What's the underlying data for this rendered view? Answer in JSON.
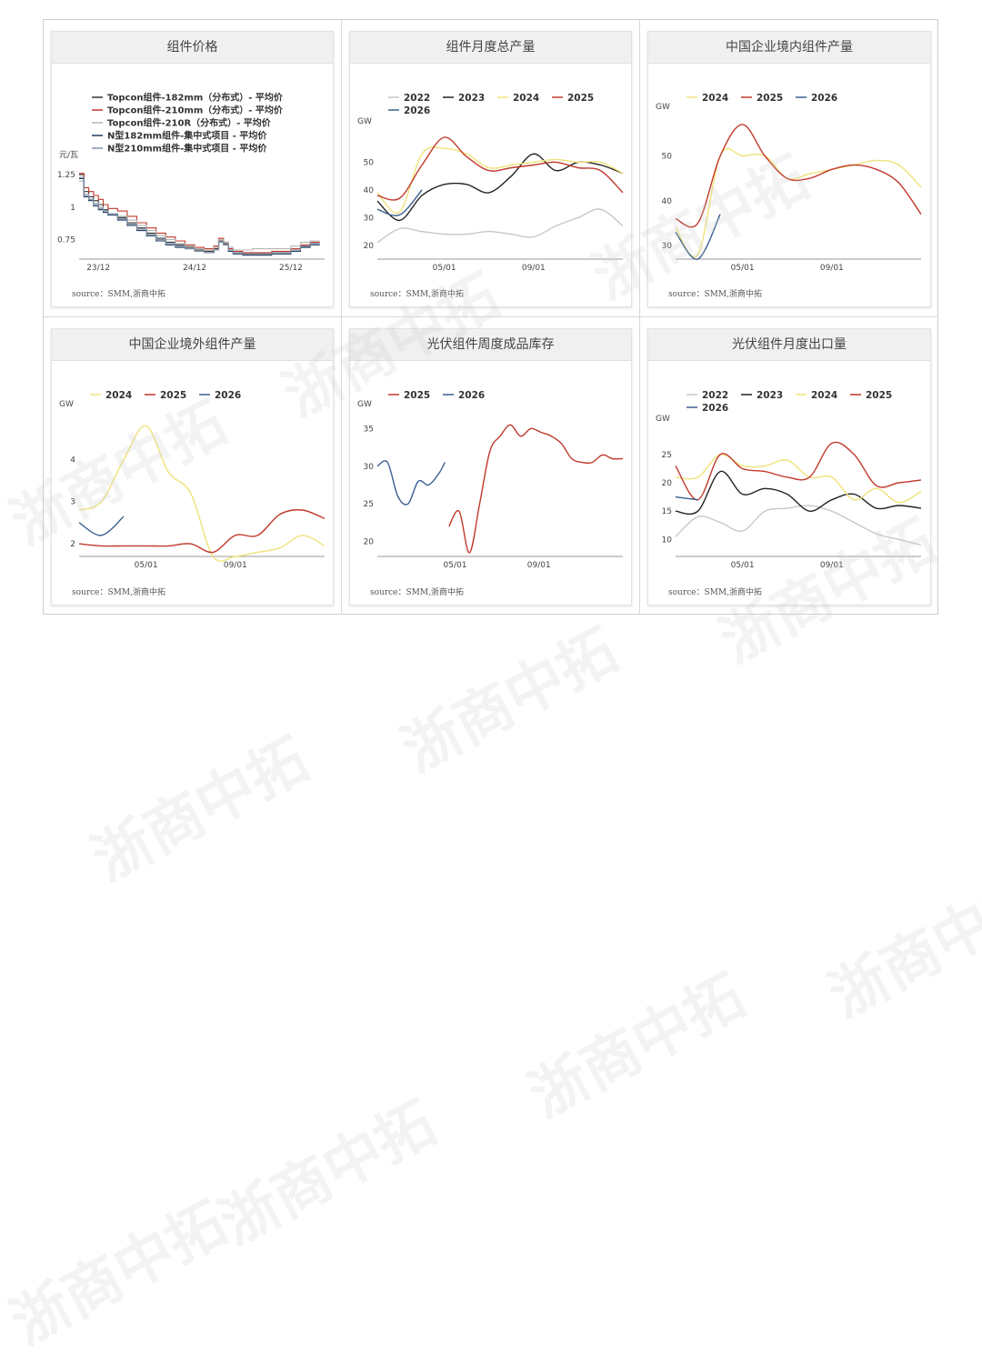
{
  "watermark": "浙商中拓",
  "panels": [
    {
      "title": "组件价格",
      "source": "source：SMM,浙商中拓",
      "chart_data": {
        "type": "line",
        "ylabel": "元/瓦",
        "ylim": [
          0.6,
          1.3
        ],
        "yticks": [
          0.75,
          1,
          1.25
        ],
        "ytick_labels": [
          "0.75",
          "1",
          "1.25"
        ],
        "xlim": [
          0,
          25.5
        ],
        "xticks": [
          2,
          12,
          22
        ],
        "xtick_labels": [
          "23/12",
          "24/12",
          "25/12"
        ],
        "legend_position": "top-left",
        "step": true,
        "series": [
          {
            "name": "Topcon组件-182mm（分布式）- 平均价",
            "color": "#333333",
            "x": [
              0,
              0.5,
              1,
              1.5,
              2,
              2.5,
              3,
              4,
              5,
              6,
              7,
              8,
              9,
              10,
              11,
              12,
              13,
              14,
              14.5,
              15,
              15.5,
              16,
              17,
              18,
              19,
              20,
              21,
              22,
              23,
              24,
              25
            ],
            "y": [
              1.25,
              1.12,
              1.08,
              1.05,
              1.02,
              0.98,
              0.95,
              0.92,
              0.88,
              0.84,
              0.8,
              0.76,
              0.73,
              0.71,
              0.69,
              0.67,
              0.66,
              0.68,
              0.74,
              0.72,
              0.67,
              0.65,
              0.64,
              0.64,
              0.64,
              0.65,
              0.65,
              0.67,
              0.7,
              0.72,
              0.72
            ]
          },
          {
            "name": "Topcon组件-210mm（分布式）- 平均价",
            "color": "#c0392b",
            "x": [
              0,
              0.5,
              1,
              1.5,
              2,
              2.5,
              3,
              4,
              5,
              6,
              7,
              8,
              9,
              10,
              11,
              12,
              13,
              14,
              14.5,
              15,
              15.5,
              16,
              17,
              18,
              19,
              20,
              21,
              22,
              23,
              24,
              25
            ],
            "y": [
              1.26,
              1.15,
              1.12,
              1.09,
              1.06,
              1.02,
              0.99,
              0.97,
              0.93,
              0.88,
              0.84,
              0.8,
              0.77,
              0.74,
              0.71,
              0.69,
              0.68,
              0.7,
              0.76,
              0.73,
              0.68,
              0.66,
              0.65,
              0.65,
              0.65,
              0.66,
              0.66,
              0.68,
              0.71,
              0.73,
              0.73
            ]
          },
          {
            "name": "Topcon组件-210R（分布式）- 平均价",
            "color": "#b5b5b5",
            "x": [
              0,
              0.5,
              1,
              1.5,
              2,
              2.5,
              3,
              4,
              5,
              6,
              7,
              8,
              9,
              10,
              11,
              12,
              13,
              14,
              14.5,
              15,
              15.5,
              16,
              17,
              18,
              19,
              20,
              21,
              22,
              23,
              24,
              25
            ],
            "y": [
              1.2,
              1.1,
              1.06,
              1.03,
              1.0,
              0.97,
              0.95,
              0.93,
              0.9,
              0.86,
              0.82,
              0.78,
              0.75,
              0.72,
              0.7,
              0.68,
              0.67,
              0.69,
              0.75,
              0.73,
              0.69,
              0.67,
              0.67,
              0.68,
              0.68,
              0.68,
              0.68,
              0.7,
              0.73,
              0.74,
              0.74
            ]
          },
          {
            "name": "N型182mm组件-集中式项目 - 平均价",
            "color": "#1f3a5f",
            "x": [
              0,
              0.5,
              1,
              1.5,
              2,
              2.5,
              3,
              4,
              5,
              6,
              7,
              8,
              9,
              10,
              11,
              12,
              13,
              14,
              14.5,
              15,
              15.5,
              16,
              17,
              18,
              19,
              20,
              21,
              22,
              23,
              24,
              25
            ],
            "y": [
              1.22,
              1.08,
              1.05,
              1.01,
              0.98,
              0.96,
              0.94,
              0.9,
              0.86,
              0.82,
              0.78,
              0.74,
              0.71,
              0.69,
              0.68,
              0.66,
              0.65,
              0.67,
              0.73,
              0.71,
              0.66,
              0.64,
              0.63,
              0.63,
              0.63,
              0.64,
              0.64,
              0.66,
              0.69,
              0.71,
              0.71
            ]
          },
          {
            "name": "N型210mm组件-集中式项目 - 平均价",
            "color": "#7f8fa6",
            "x": [
              0,
              0.5,
              1,
              1.5,
              2,
              2.5,
              3,
              4,
              5,
              6,
              7,
              8,
              9,
              10,
              11,
              12,
              13,
              14,
              14.5,
              15,
              15.5,
              16,
              17,
              18,
              19,
              20,
              21,
              22,
              23,
              24,
              25
            ],
            "y": [
              1.23,
              1.09,
              1.06,
              1.02,
              0.99,
              0.97,
              0.95,
              0.91,
              0.87,
              0.83,
              0.79,
              0.75,
              0.72,
              0.7,
              0.68,
              0.66,
              0.65,
              0.67,
              0.73,
              0.71,
              0.67,
              0.65,
              0.64,
              0.64,
              0.64,
              0.65,
              0.65,
              0.67,
              0.7,
              0.72,
              0.72
            ]
          }
        ]
      }
    },
    {
      "title": "组件月度总产量",
      "source": "source：SMM,浙商中拓",
      "chart_data": {
        "type": "line",
        "ylabel": "GW",
        "ylim": [
          15,
          60
        ],
        "yticks": [
          20,
          30,
          40,
          50
        ],
        "ytick_labels": [
          "20",
          "30",
          "40",
          "50"
        ],
        "xlim": [
          1,
          12
        ],
        "xticks": [
          4,
          8
        ],
        "xtick_labels": [
          "05/01",
          "09/01"
        ],
        "legend_position": "top",
        "series": [
          {
            "name": "2022",
            "color": "#c8c8c8",
            "x": [
              1,
              2,
              3,
              4,
              5,
              6,
              7,
              8,
              9,
              10,
              11,
              12
            ],
            "y": [
              21,
              26,
              25,
              24,
              24,
              25,
              24,
              23,
              27,
              30,
              33,
              27
            ]
          },
          {
            "name": "2023",
            "color": "#222222",
            "x": [
              1,
              2,
              3,
              4,
              5,
              6,
              7,
              8,
              9,
              10,
              11,
              12
            ],
            "y": [
              36,
              29,
              38,
              42,
              42,
              39,
              45,
              53,
              47,
              50,
              49,
              46
            ]
          },
          {
            "name": "2024",
            "color": "#f0e27a",
            "x": [
              1,
              2,
              3,
              4,
              5,
              6,
              7,
              8,
              9,
              10,
              11,
              12
            ],
            "y": [
              39,
              32,
              53,
              55,
              53,
              48,
              49,
              50,
              51,
              50,
              50,
              46
            ]
          },
          {
            "name": "2025",
            "color": "#c0392b",
            "x": [
              1,
              2,
              3,
              4,
              5,
              6,
              7,
              8,
              9,
              10,
              11,
              12
            ],
            "y": [
              38,
              37,
              49,
              59,
              52,
              47,
              48,
              49,
              50,
              48,
              47,
              39
            ]
          },
          {
            "name": "2026",
            "color": "#3a5f8f",
            "x": [
              1,
              2,
              3
            ],
            "y": [
              33,
              31,
              40
            ]
          }
        ]
      }
    },
    {
      "title": "中国企业境内组件产量",
      "source": "source：SMM,浙商中拓",
      "chart_data": {
        "type": "line",
        "ylabel": "GW",
        "ylim": [
          27,
          58
        ],
        "yticks": [
          30,
          40,
          50
        ],
        "ytick_labels": [
          "30",
          "40",
          "50"
        ],
        "xlim": [
          1,
          12
        ],
        "xticks": [
          4,
          8
        ],
        "xtick_labels": [
          "05/01",
          "09/01"
        ],
        "legend_position": "top",
        "series": [
          {
            "name": "2024",
            "color": "#f0e27a",
            "x": [
              1,
              2,
              3,
              4,
              5,
              6,
              7,
              8,
              9,
              10,
              11,
              12
            ],
            "y": [
              34,
              28,
              50,
              50,
              50,
              45,
              46,
              47,
              48,
              49,
              48,
              43
            ]
          },
          {
            "name": "2025",
            "color": "#c0392b",
            "x": [
              1,
              2,
              3,
              4,
              5,
              6,
              7,
              8,
              9,
              10,
              11,
              12
            ],
            "y": [
              36,
              35,
              50,
              57,
              50,
              45,
              45,
              47,
              48,
              47,
              44,
              37
            ]
          },
          {
            "name": "2026",
            "color": "#3a5f8f",
            "x": [
              1,
              2,
              3
            ],
            "y": [
              33,
              27,
              37
            ]
          }
        ]
      }
    },
    {
      "title": "中国企业境外组件产量",
      "source": "source：SMM,浙商中拓",
      "chart_data": {
        "type": "line",
        "ylabel": "GW",
        "ylim": [
          1.7,
          5
        ],
        "yticks": [
          2,
          3,
          4
        ],
        "ytick_labels": [
          "2",
          "3",
          "4"
        ],
        "xlim": [
          1,
          12
        ],
        "xticks": [
          4,
          8
        ],
        "xtick_labels": [
          "05/01",
          "09/01"
        ],
        "legend_position": "top",
        "series": [
          {
            "name": "2024",
            "color": "#f0e27a",
            "x": [
              1,
              2,
              3,
              4,
              5,
              6,
              7,
              8,
              9,
              10,
              11,
              12
            ],
            "y": [
              2.8,
              3.0,
              4.0,
              4.8,
              3.7,
              3.2,
              1.7,
              1.7,
              1.8,
              1.9,
              2.2,
              1.95
            ]
          },
          {
            "name": "2025",
            "color": "#c0392b",
            "x": [
              1,
              2,
              3,
              4,
              5,
              6,
              7,
              8,
              9,
              10,
              11,
              12
            ],
            "y": [
              2.0,
              1.95,
              1.95,
              1.95,
              1.95,
              2.0,
              1.8,
              2.2,
              2.2,
              2.7,
              2.8,
              2.6
            ]
          },
          {
            "name": "2026",
            "color": "#3a5f8f",
            "x": [
              1,
              2,
              3
            ],
            "y": [
              2.5,
              2.2,
              2.65
            ]
          }
        ]
      }
    },
    {
      "title": "光伏组件周度成品库存",
      "source": "source：SMM,浙商中拓",
      "chart_data": {
        "type": "line",
        "ylabel": "GW",
        "ylim": [
          18,
          36.5
        ],
        "yticks": [
          20,
          25,
          30,
          35
        ],
        "ytick_labels": [
          "20",
          "25",
          "30",
          "35"
        ],
        "xlim": [
          1,
          13
        ],
        "xticks": [
          4.8,
          8.9
        ],
        "xtick_labels": [
          "05/01",
          "09/01"
        ],
        "legend_position": "top",
        "series": [
          {
            "name": "2025",
            "color": "#c0392b",
            "x": [
              4.5,
              5.0,
              5.5,
              6.0,
              6.5,
              7.0,
              7.5,
              8.0,
              8.5,
              9.0,
              9.5,
              10.0,
              10.5,
              11.0,
              11.5,
              12.0,
              12.5,
              13.0
            ],
            "y": [
              22,
              24,
              18.5,
              25,
              32,
              34,
              35.5,
              34,
              35,
              34.5,
              34,
              33,
              31,
              30.5,
              30.5,
              31.5,
              31,
              31
            ]
          },
          {
            "name": "2026",
            "color": "#3a5f8f",
            "x": [
              1,
              1.5,
              2,
              2.5,
              3,
              3.5,
              4,
              4.3
            ],
            "y": [
              30,
              30.5,
              26,
              25,
              28,
              27.5,
              29,
              30.5
            ]
          }
        ]
      }
    },
    {
      "title": "光伏组件月度出口量",
      "source": "source：SMM,浙商中拓",
      "chart_data": {
        "type": "line",
        "ylabel": "GW",
        "ylim": [
          7,
          29
        ],
        "yticks": [
          10,
          15,
          20,
          25
        ],
        "ytick_labels": [
          "10",
          "15",
          "20",
          "25"
        ],
        "xlim": [
          1,
          12
        ],
        "xticks": [
          4,
          8
        ],
        "xtick_labels": [
          "05/01",
          "09/01"
        ],
        "legend_position": "top",
        "series": [
          {
            "name": "2022",
            "color": "#c8c8c8",
            "x": [
              1,
              2,
              3,
              4,
              5,
              6,
              7,
              8,
              9,
              10,
              11,
              12
            ],
            "y": [
              10.5,
              14,
              13,
              11.5,
              15,
              15.5,
              16,
              15,
              13,
              11,
              10,
              9
            ]
          },
          {
            "name": "2023",
            "color": "#222222",
            "x": [
              1,
              2,
              3,
              4,
              5,
              6,
              7,
              8,
              9,
              10,
              11,
              12
            ],
            "y": [
              15,
              15,
              22,
              18,
              19,
              18,
              15,
              17,
              18,
              15.5,
              16,
              15.5
            ]
          },
          {
            "name": "2024",
            "color": "#f0e27a",
            "x": [
              1,
              2,
              3,
              4,
              5,
              6,
              7,
              8,
              9,
              10,
              11,
              12
            ],
            "y": [
              21,
              21,
              25,
              23,
              23,
              24,
              21,
              21,
              17,
              19,
              16.5,
              18.5
            ]
          },
          {
            "name": "2025",
            "color": "#c0392b",
            "x": [
              1,
              2,
              3,
              4,
              5,
              6,
              7,
              8,
              9,
              10,
              11,
              12
            ],
            "y": [
              23,
              17,
              25,
              22.5,
              22,
              21,
              21,
              27,
              25,
              19.5,
              20,
              20.5
            ]
          },
          {
            "name": "2026",
            "color": "#3a5f8f",
            "x": [
              1,
              2
            ],
            "y": [
              17.5,
              17
            ]
          }
        ]
      }
    }
  ]
}
